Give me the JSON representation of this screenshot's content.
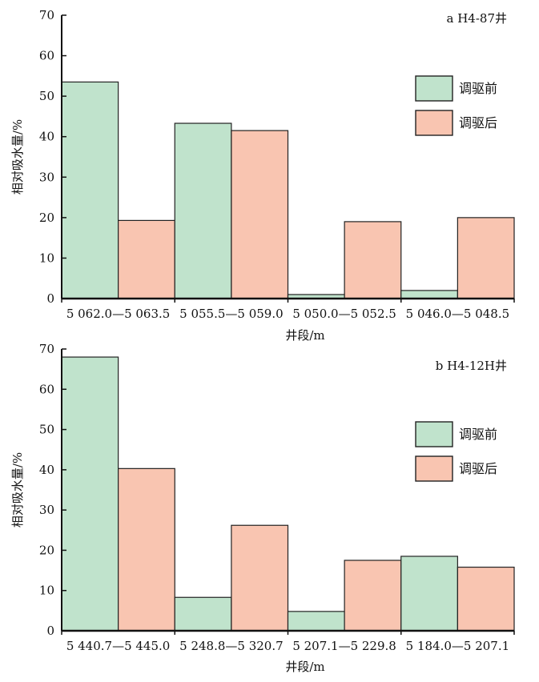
{
  "chart_data": [
    {
      "type": "bar",
      "panel_label": "a  H4-87井",
      "xlabel": "井段/m",
      "ylabel": "相对吸水量/%",
      "ylim": [
        0,
        70
      ],
      "yticks": [
        "0",
        "10",
        "20",
        "30",
        "40",
        "50",
        "60",
        "70"
      ],
      "categories": [
        "5 062.0—5 063.5",
        "5 055.5—5 059.0",
        "5 050.0—5 052.5",
        "5 046.0—5 048.5"
      ],
      "series": [
        {
          "name": "调驱前",
          "color": "#c0e3cc",
          "values": [
            53.5,
            43.3,
            1.0,
            2.0
          ]
        },
        {
          "name": "调驱后",
          "color": "#f9c5b1",
          "values": [
            19.3,
            41.5,
            19.0,
            20.0
          ]
        }
      ],
      "legend_position": "right"
    },
    {
      "type": "bar",
      "panel_label": "b  H4-12H井",
      "xlabel": "井段/m",
      "ylabel": "相对吸水量/%",
      "ylim": [
        0,
        70
      ],
      "yticks": [
        "0",
        "10",
        "20",
        "30",
        "40",
        "50",
        "60",
        "70"
      ],
      "categories": [
        "5 440.7—5 445.0",
        "5 248.8—5 320.7",
        "5 207.1—5 229.8",
        "5 184.0—5 207.1"
      ],
      "series": [
        {
          "name": "调驱前",
          "color": "#c0e3cc",
          "values": [
            68.0,
            8.3,
            4.8,
            18.5
          ]
        },
        {
          "name": "调驱后",
          "color": "#f9c5b1",
          "values": [
            40.3,
            26.2,
            17.5,
            15.8
          ]
        }
      ],
      "legend_position": "right"
    }
  ]
}
